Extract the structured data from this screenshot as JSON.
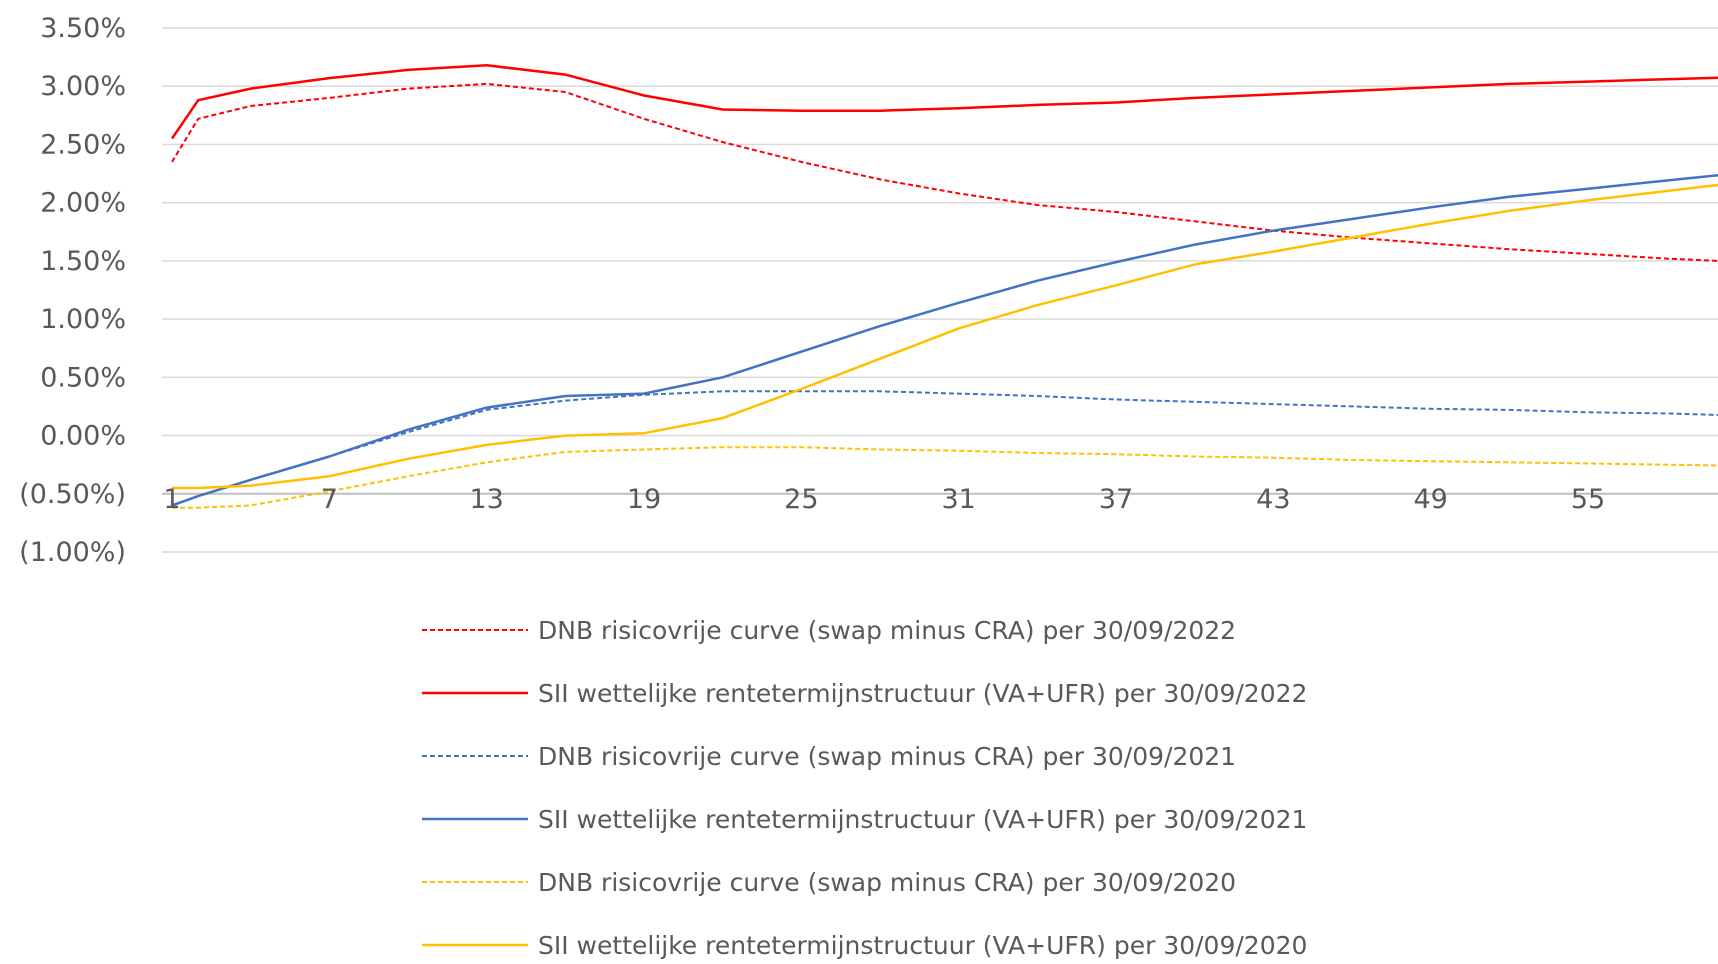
{
  "chart_data": {
    "type": "line",
    "title": "",
    "xlabel": "",
    "ylabel": "",
    "grid": true,
    "legend_position": "bottom",
    "ylim": [
      -1.0,
      3.5
    ],
    "xlim": [
      1,
      61
    ],
    "y_ticks": [
      {
        "value": 3.5,
        "label": "3.50%"
      },
      {
        "value": 3.0,
        "label": "3.00%"
      },
      {
        "value": 2.5,
        "label": "2.50%"
      },
      {
        "value": 2.0,
        "label": "2.00%"
      },
      {
        "value": 1.5,
        "label": "1.50%"
      },
      {
        "value": 1.0,
        "label": "1.00%"
      },
      {
        "value": 0.5,
        "label": "0.50%"
      },
      {
        "value": 0.0,
        "label": "0.00%"
      },
      {
        "value": -0.5,
        "label": "(0.50%)"
      },
      {
        "value": -1.0,
        "label": "(1.00%)"
      }
    ],
    "x_ticks": [
      {
        "value": 1,
        "label": "1"
      },
      {
        "value": 7,
        "label": "7"
      },
      {
        "value": 13,
        "label": "13"
      },
      {
        "value": 19,
        "label": "19"
      },
      {
        "value": 25,
        "label": "25"
      },
      {
        "value": 31,
        "label": "31"
      },
      {
        "value": 37,
        "label": "37"
      },
      {
        "value": 43,
        "label": "43"
      },
      {
        "value": 49,
        "label": "49"
      },
      {
        "value": 55,
        "label": "55"
      }
    ],
    "x": [
      1,
      2,
      4,
      7,
      10,
      13,
      16,
      19,
      22,
      25,
      28,
      31,
      34,
      37,
      40,
      43,
      46,
      49,
      52,
      55,
      58,
      61
    ],
    "series": [
      {
        "name": "DNB risicovrije curve (swap minus CRA) per 30/09/2022",
        "color": "#ff0000",
        "dash": "dashed",
        "values": [
          2.35,
          2.72,
          2.83,
          2.9,
          2.98,
          3.02,
          2.95,
          2.72,
          2.52,
          2.35,
          2.2,
          2.08,
          1.98,
          1.92,
          1.84,
          1.76,
          1.7,
          1.65,
          1.6,
          1.56,
          1.52,
          1.49
        ]
      },
      {
        "name": "SII wettelijke rentetermijnstructuur (VA+UFR)  per 30/09/2022",
        "color": "#ff0000",
        "dash": "solid",
        "values": [
          2.55,
          2.88,
          2.98,
          3.07,
          3.14,
          3.18,
          3.1,
          2.92,
          2.8,
          2.79,
          2.79,
          2.81,
          2.84,
          2.86,
          2.9,
          2.93,
          2.96,
          2.99,
          3.02,
          3.04,
          3.06,
          3.08
        ]
      },
      {
        "name": "DNB risicovrije curve (swap minus CRA) per 30/09/2021",
        "color": "#4472c4",
        "dash": "dashed",
        "values": [
          -0.6,
          -0.52,
          -0.38,
          -0.18,
          0.03,
          0.22,
          0.3,
          0.35,
          0.38,
          0.38,
          0.38,
          0.36,
          0.34,
          0.31,
          0.29,
          0.27,
          0.25,
          0.23,
          0.22,
          0.2,
          0.19,
          0.17
        ]
      },
      {
        "name": "SII wettelijke rentetermijnstructuur (VA+UFR) per 30/09/2021",
        "color": "#4472c4",
        "dash": "solid",
        "values": [
          -0.6,
          -0.52,
          -0.38,
          -0.18,
          0.05,
          0.24,
          0.34,
          0.36,
          0.5,
          0.72,
          0.94,
          1.14,
          1.33,
          1.49,
          1.64,
          1.76,
          1.86,
          1.96,
          2.05,
          2.12,
          2.19,
          2.26
        ]
      },
      {
        "name": "DNB risicovrije curve (swap minus CRA) per 30/09/2020",
        "color": "#ffc000",
        "dash": "dashed",
        "values": [
          -0.62,
          -0.62,
          -0.6,
          -0.48,
          -0.35,
          -0.23,
          -0.14,
          -0.12,
          -0.1,
          -0.1,
          -0.12,
          -0.13,
          -0.15,
          -0.16,
          -0.18,
          -0.19,
          -0.21,
          -0.22,
          -0.23,
          -0.24,
          -0.25,
          -0.26
        ]
      },
      {
        "name": "SII wettelijke rentetermijnstructuur (VA+UFR) per 30/09/2020",
        "color": "#ffc000",
        "dash": "solid",
        "values": [
          -0.45,
          -0.45,
          -0.43,
          -0.35,
          -0.2,
          -0.08,
          0.0,
          0.02,
          0.15,
          0.4,
          0.66,
          0.92,
          1.12,
          1.29,
          1.47,
          1.58,
          1.7,
          1.82,
          1.93,
          2.02,
          2.1,
          2.18
        ]
      }
    ]
  }
}
